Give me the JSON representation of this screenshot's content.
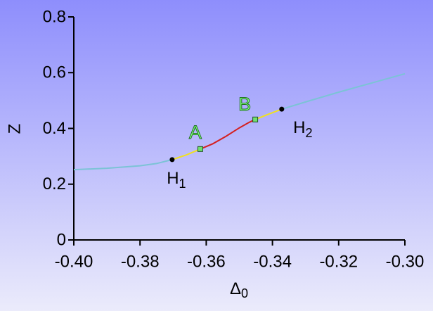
{
  "chart_data": {
    "type": "line",
    "x_label": {
      "text": "Δ",
      "sub": "0"
    },
    "y_label": "Z",
    "xlim": [
      -0.4,
      -0.3
    ],
    "ylim": [
      0,
      0.8
    ],
    "xticks": [
      {
        "value": -0.4,
        "label": "-0.40"
      },
      -0.38,
      -0.36,
      -0.34,
      -0.32,
      {
        "value": -0.3,
        "label": "-0.30"
      }
    ],
    "yticks": [
      0,
      0.2,
      0.4,
      0.6,
      0.8
    ],
    "series": [
      {
        "color": "#7cc3d6",
        "x": [
          -0.4,
          -0.39,
          -0.38,
          -0.375,
          -0.3703
        ],
        "values": [
          0.252,
          0.257,
          0.266,
          0.274,
          0.288
        ]
      },
      {
        "color": "#f0e020",
        "x": [
          -0.3703,
          -0.366,
          -0.3618
        ],
        "values": [
          0.288,
          0.305,
          0.326
        ]
      },
      {
        "color": "#d42020",
        "x": [
          -0.3618,
          -0.358,
          -0.354,
          -0.35,
          -0.347,
          -0.3452
        ],
        "values": [
          0.326,
          0.345,
          0.372,
          0.402,
          0.422,
          0.432
        ]
      },
      {
        "color": "#f0e020",
        "x": [
          -0.3452,
          -0.341,
          -0.3372
        ],
        "values": [
          0.432,
          0.452,
          0.469
        ]
      },
      {
        "color": "#7cc3d6",
        "x": [
          -0.3372,
          -0.33,
          -0.32,
          -0.31,
          -0.3
        ],
        "values": [
          0.469,
          0.495,
          0.53,
          0.563,
          0.596
        ]
      }
    ],
    "markers": [
      {
        "text": "H",
        "sub": "1",
        "x": -0.3703,
        "y": 0.288,
        "shape": "circle",
        "color": "#000000"
      },
      {
        "text": "A",
        "x": -0.3618,
        "y": 0.326,
        "shape": "square",
        "color": "#70e070"
      },
      {
        "text": "B",
        "x": -0.3452,
        "y": 0.432,
        "shape": "square",
        "color": "#70e070"
      },
      {
        "text": "H",
        "sub": "2",
        "x": -0.3372,
        "y": 0.469,
        "shape": "circle",
        "color": "#000000"
      }
    ]
  }
}
